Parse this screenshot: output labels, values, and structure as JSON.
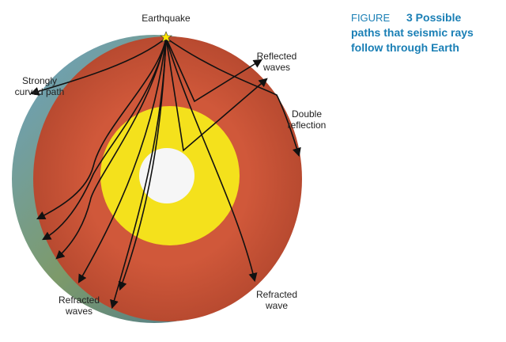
{
  "caption": {
    "label": "FIGURE",
    "lines": [
      "3 Possible",
      "paths that seismic rays",
      "follow through Earth"
    ]
  },
  "labels": {
    "earthquake": "Earthquake",
    "reflected_waves": [
      "Reflected",
      "waves"
    ],
    "strongly_curved_path": [
      "Strongly",
      "curved path"
    ],
    "double_reflection": [
      "Double",
      "reflection"
    ],
    "refracted_waves": [
      "Refracted",
      "waves"
    ],
    "refracted_wave": [
      "Refracted",
      "wave"
    ]
  }
}
